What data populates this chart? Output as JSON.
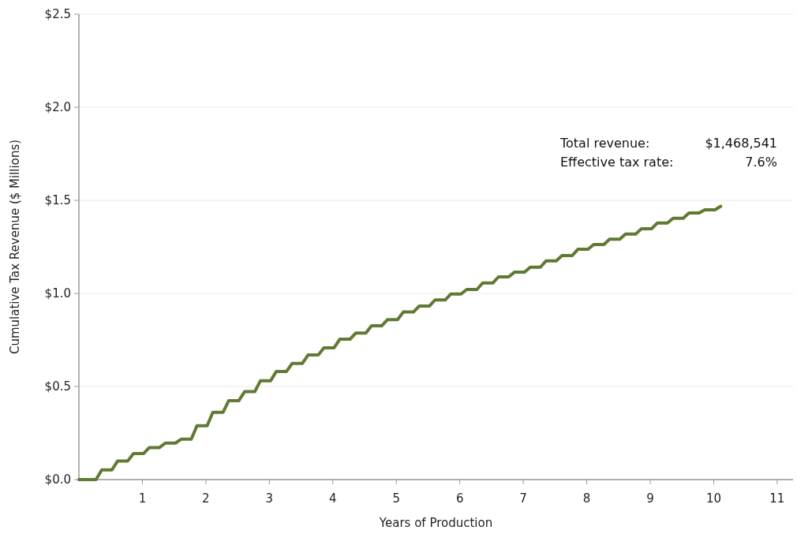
{
  "chart_data": {
    "type": "line",
    "xlabel": "Years of Production",
    "ylabel": "Cumulative Tax Revenue ($ Millions)",
    "annotations": [
      "Total revenue:",
      "$1,468,541",
      "Effective tax rate:",
      "7.6%"
    ],
    "xlim": [
      0,
      11.25
    ],
    "xticks": [
      1,
      2,
      3,
      4,
      5,
      6,
      7,
      8,
      9,
      10,
      11
    ],
    "ylim": [
      0,
      2.5
    ],
    "yticks": [
      {
        "value": 0,
        "label": "$0.0"
      },
      {
        "value": 0.5,
        "label": "$0.5"
      },
      {
        "value": 1,
        "label": "$1.0"
      },
      {
        "value": 1.5,
        "label": "$1.5"
      },
      {
        "value": 2,
        "label": "$2.0"
      },
      {
        "value": 2.5,
        "label": "$2.5"
      }
    ],
    "grid": "y",
    "marker": "none",
    "line_style": "solid",
    "series": [
      {
        "color": "#5f7a32",
        "x": [
          0,
          0.27,
          0.36,
          0.52,
          0.61,
          0.77,
          0.86,
          1.02,
          1.11,
          1.27,
          1.36,
          1.52,
          1.61,
          1.77,
          1.86,
          2.02,
          2.11,
          2.27,
          2.36,
          2.52,
          2.61,
          2.77,
          2.86,
          3.02,
          3.11,
          3.27,
          3.36,
          3.52,
          3.61,
          3.77,
          3.86,
          4.02,
          4.11,
          4.27,
          4.36,
          4.52,
          4.61,
          4.77,
          4.86,
          5.02,
          5.11,
          5.27,
          5.36,
          5.52,
          5.61,
          5.77,
          5.86,
          6.02,
          6.11,
          6.27,
          6.36,
          6.52,
          6.61,
          6.77,
          6.86,
          7.02,
          7.11,
          7.27,
          7.36,
          7.52,
          7.61,
          7.77,
          7.86,
          8.02,
          8.11,
          8.27,
          8.36,
          8.52,
          8.61,
          8.77,
          8.86,
          9.02,
          9.11,
          9.27,
          9.36,
          9.52,
          9.61,
          9.77,
          9.86,
          10.02,
          10.11
        ],
        "values": [
          0,
          0,
          0.052,
          0.052,
          0.1,
          0.1,
          0.14,
          0.14,
          0.172,
          0.172,
          0.196,
          0.196,
          0.217,
          0.217,
          0.289,
          0.289,
          0.361,
          0.361,
          0.424,
          0.424,
          0.472,
          0.472,
          0.531,
          0.531,
          0.581,
          0.581,
          0.624,
          0.624,
          0.669,
          0.669,
          0.708,
          0.708,
          0.754,
          0.754,
          0.787,
          0.787,
          0.826,
          0.826,
          0.859,
          0.859,
          0.9,
          0.9,
          0.932,
          0.932,
          0.965,
          0.965,
          0.997,
          0.997,
          1.021,
          1.021,
          1.056,
          1.056,
          1.089,
          1.089,
          1.114,
          1.114,
          1.141,
          1.141,
          1.175,
          1.175,
          1.203,
          1.203,
          1.237,
          1.237,
          1.263,
          1.263,
          1.291,
          1.291,
          1.319,
          1.319,
          1.347,
          1.347,
          1.378,
          1.378,
          1.404,
          1.404,
          1.432,
          1.432,
          1.449,
          1.449,
          1.468
        ]
      }
    ]
  }
}
